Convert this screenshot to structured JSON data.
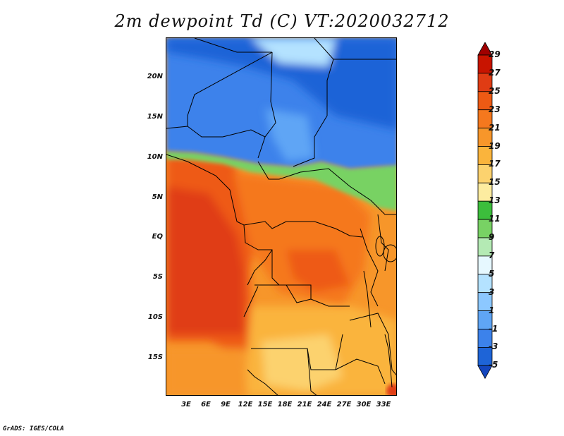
{
  "title": "2m dewpoint Td (C) VT:2020032712",
  "footer": "GrADS: IGES/COLA",
  "map": {
    "lat_range": [
      -20,
      25
    ],
    "lon_range": [
      0,
      35
    ],
    "lat_ticks": [
      "20N",
      "15N",
      "10N",
      "5N",
      "EQ",
      "5S",
      "10S",
      "15S"
    ],
    "lon_ticks": [
      "3E",
      "6E",
      "9E",
      "12E",
      "15E",
      "18E",
      "21E",
      "24E",
      "27E",
      "30E",
      "33E"
    ]
  },
  "colorbar": {
    "levels": [
      "29",
      "27",
      "25",
      "23",
      "21",
      "19",
      "17",
      "15",
      "13",
      "11",
      "9",
      "7",
      "5",
      "3",
      "1",
      "-1",
      "-3",
      "-5"
    ],
    "colors": [
      "#a00000",
      "#c81400",
      "#e03c14",
      "#ee5a14",
      "#f5781e",
      "#f7962a",
      "#fab43c",
      "#fcd26e",
      "#fdeca0",
      "#3cbe3c",
      "#78d264",
      "#b4eab4",
      "#e6f8ff",
      "#b4e2ff",
      "#8cc8ff",
      "#5fa5f5",
      "#3c82eb",
      "#1e64d7",
      "#1446be"
    ]
  }
}
